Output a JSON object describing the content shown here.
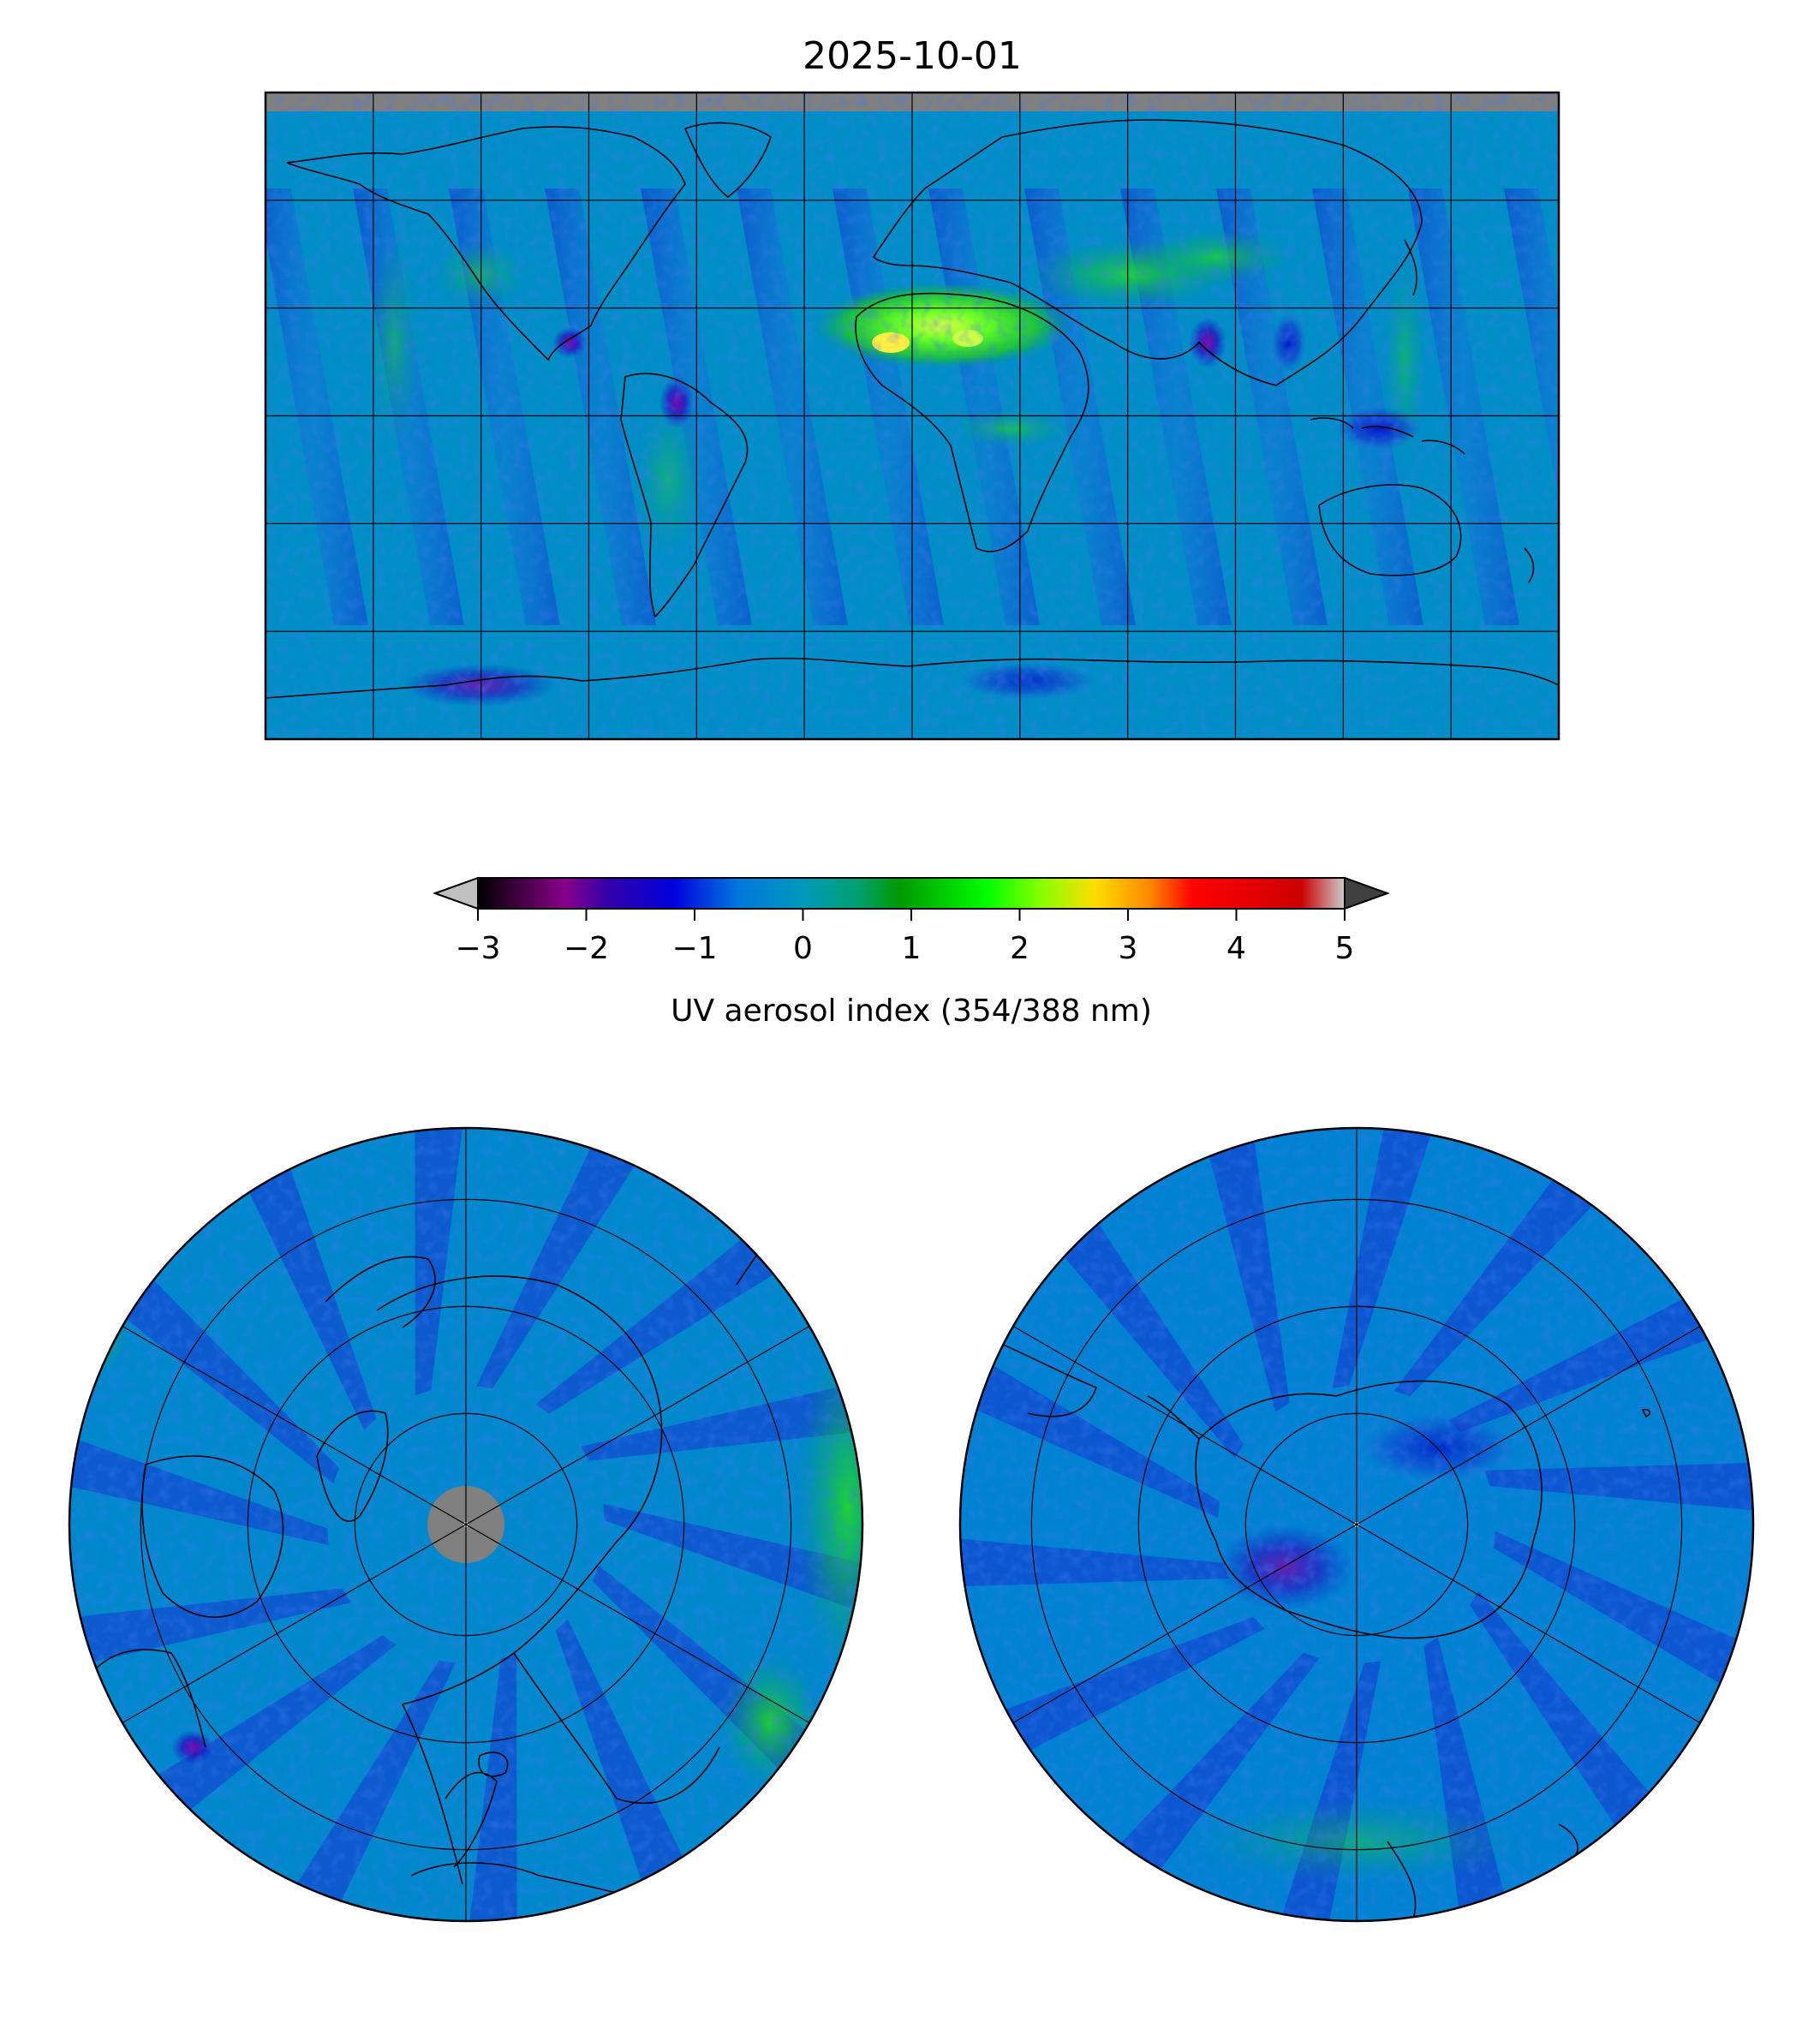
{
  "title": "2025-10-01",
  "colorbar": {
    "label": "UV aerosol index (354/388 nm)",
    "ticks": [
      "−3",
      "−2",
      "−1",
      "0",
      "1",
      "2",
      "3",
      "4",
      "5"
    ],
    "tick_values": [
      -3,
      -2,
      -1,
      0,
      1,
      2,
      3,
      4,
      5
    ],
    "vmin": -3,
    "vmax": 5,
    "extend": "both",
    "under_color": "#c0c0c0",
    "over_color": "#404040",
    "colormap_stops": [
      {
        "value": -3.0,
        "color": "#000000"
      },
      {
        "value": -2.2,
        "color": "#880088"
      },
      {
        "value": -1.8,
        "color": "#3300aa"
      },
      {
        "value": -1.2,
        "color": "#0000dd"
      },
      {
        "value": -0.6,
        "color": "#0077dd"
      },
      {
        "value": 0.0,
        "color": "#0099bb"
      },
      {
        "value": 0.5,
        "color": "#00a070"
      },
      {
        "value": 0.9,
        "color": "#009900"
      },
      {
        "value": 1.7,
        "color": "#00ff00"
      },
      {
        "value": 2.2,
        "color": "#88ff00"
      },
      {
        "value": 2.7,
        "color": "#ffdd00"
      },
      {
        "value": 3.2,
        "color": "#ff8800"
      },
      {
        "value": 3.6,
        "color": "#ff0000"
      },
      {
        "value": 4.6,
        "color": "#cc0000"
      },
      {
        "value": 5.0,
        "color": "#cccccc"
      }
    ]
  },
  "maps": {
    "global": {
      "projection": "plate-carree",
      "background_value": -0.2,
      "missing_color": "#808080",
      "gridline_lon_step_deg": 30,
      "gridline_lat_step_deg": 30
    },
    "north_polar": {
      "projection": "north-polar-stereographic",
      "background_value": -0.3,
      "pole_missing_color": "#808080"
    },
    "south_polar": {
      "projection": "south-polar-stereographic",
      "background_value": -0.4
    }
  }
}
